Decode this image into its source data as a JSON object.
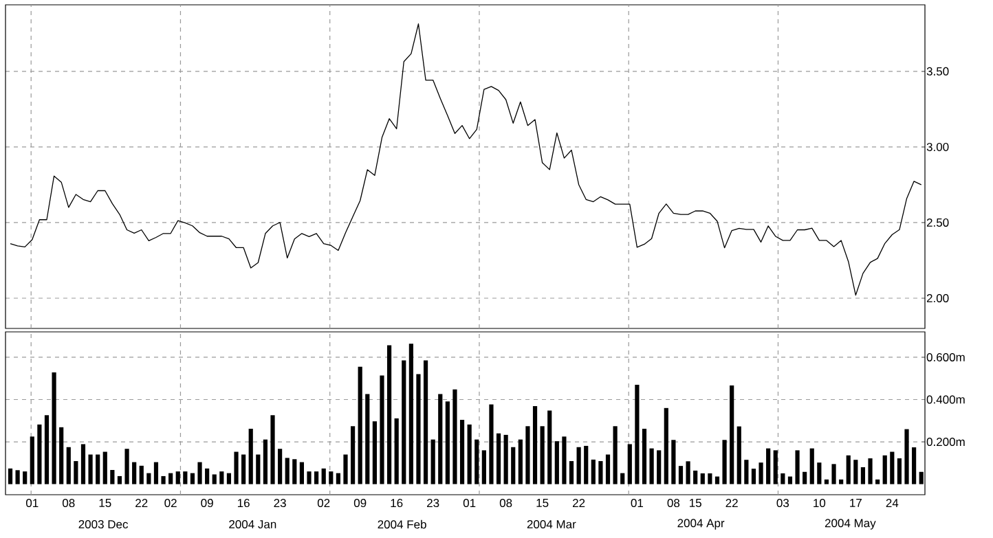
{
  "chart_data": [
    {
      "type": "line",
      "color": "#000000",
      "grid": true,
      "tick_labels": "y",
      "ylim": [
        1.8,
        3.94
      ],
      "yticks": [
        {
          "value": 2.0,
          "label": "2.00"
        },
        {
          "value": 2.5,
          "label": "2.50"
        },
        {
          "value": 3.0,
          "label": "3.00"
        },
        {
          "value": 3.5,
          "label": "3.50"
        }
      ],
      "categories": [
        null,
        null,
        null,
        "01",
        null,
        null,
        null,
        null,
        "08",
        null,
        null,
        null,
        null,
        "15",
        null,
        null,
        null,
        null,
        "22",
        null,
        null,
        null,
        "02",
        null,
        null,
        null,
        null,
        "09",
        null,
        null,
        null,
        null,
        "16",
        null,
        null,
        null,
        null,
        "23",
        null,
        null,
        null,
        null,
        null,
        "02",
        null,
        null,
        null,
        null,
        "09",
        null,
        null,
        null,
        null,
        "16",
        null,
        null,
        null,
        null,
        "23",
        null,
        null,
        null,
        null,
        "01",
        null,
        null,
        null,
        null,
        "08",
        null,
        null,
        null,
        null,
        "15",
        null,
        null,
        null,
        null,
        "22",
        null,
        null,
        null,
        null,
        null,
        null,
        null,
        "01",
        null,
        null,
        null,
        null,
        "08",
        null,
        null,
        "15",
        null,
        null,
        null,
        null,
        "22",
        null,
        null,
        null,
        null,
        null,
        null,
        "03",
        null,
        null,
        null,
        null,
        "10",
        null,
        null,
        null,
        null,
        "17",
        null,
        null,
        null,
        null,
        "24",
        null,
        null,
        null,
        null
      ],
      "values": [
        2.361,
        2.346,
        2.339,
        2.387,
        2.519,
        2.519,
        2.808,
        2.767,
        2.6,
        2.686,
        2.653,
        2.638,
        2.711,
        2.711,
        2.625,
        2.554,
        2.452,
        2.43,
        2.452,
        2.38,
        2.402,
        2.428,
        2.428,
        2.513,
        2.498,
        2.478,
        2.433,
        2.41,
        2.41,
        2.41,
        2.392,
        2.334,
        2.334,
        2.2,
        2.235,
        2.428,
        2.478,
        2.501,
        2.266,
        2.392,
        2.428,
        2.407,
        2.428,
        2.361,
        2.349,
        2.316,
        2.433,
        2.539,
        2.645,
        2.85,
        2.812,
        3.063,
        3.187,
        3.12,
        3.564,
        3.617,
        3.814,
        3.442,
        3.442,
        3.321,
        3.207,
        3.089,
        3.142,
        3.055,
        3.116,
        3.381,
        3.4,
        3.374,
        3.313,
        3.157,
        3.298,
        3.142,
        3.181,
        2.896,
        2.85,
        3.093,
        2.926,
        2.979,
        2.751,
        2.653,
        2.638,
        2.671,
        2.65,
        2.622,
        2.622,
        2.622,
        2.337,
        2.357,
        2.394,
        2.562,
        2.623,
        2.562,
        2.554,
        2.554,
        2.577,
        2.577,
        2.562,
        2.509,
        2.333,
        2.447,
        2.462,
        2.455,
        2.455,
        2.371,
        2.478,
        2.409,
        2.382,
        2.382,
        2.452,
        2.452,
        2.463,
        2.382,
        2.382,
        2.341,
        2.382,
        2.242,
        2.02,
        2.164,
        2.237,
        2.263,
        2.362,
        2.42,
        2.453,
        2.659,
        2.773,
        2.75
      ]
    },
    {
      "type": "bar",
      "color": "#000000",
      "grid": true,
      "ylim": [
        -0.05,
        0.72
      ],
      "yticks": [
        {
          "value": 0.2,
          "label": "0.200m"
        },
        {
          "value": 0.4,
          "label": "0.400m"
        },
        {
          "value": 0.6,
          "label": "0.600m"
        }
      ],
      "categories": [
        null,
        null,
        null,
        "01",
        null,
        null,
        null,
        null,
        "08",
        null,
        null,
        null,
        null,
        "15",
        null,
        null,
        null,
        null,
        "22",
        null,
        null,
        null,
        "02",
        null,
        null,
        null,
        null,
        "09",
        null,
        null,
        null,
        null,
        "16",
        null,
        null,
        null,
        null,
        "23",
        null,
        null,
        null,
        null,
        null,
        "02",
        null,
        null,
        null,
        null,
        "09",
        null,
        null,
        null,
        null,
        "16",
        null,
        null,
        null,
        null,
        "23",
        null,
        null,
        null,
        null,
        "01",
        null,
        null,
        null,
        null,
        "08",
        null,
        null,
        null,
        null,
        "15",
        null,
        null,
        null,
        null,
        "22",
        null,
        null,
        null,
        null,
        null,
        null,
        null,
        "01",
        null,
        null,
        null,
        null,
        "08",
        null,
        null,
        "15",
        null,
        null,
        null,
        null,
        "22",
        null,
        null,
        null,
        null,
        null,
        null,
        "03",
        null,
        null,
        null,
        null,
        "10",
        null,
        null,
        null,
        null,
        "17",
        null,
        null,
        null,
        null,
        "24",
        null,
        null,
        null,
        null
      ],
      "values": [
        0.074,
        0.066,
        0.06,
        0.225,
        0.282,
        0.326,
        0.528,
        0.269,
        0.175,
        0.109,
        0.189,
        0.14,
        0.14,
        0.153,
        0.067,
        0.038,
        0.167,
        0.104,
        0.087,
        0.052,
        0.104,
        0.038,
        0.052,
        0.06,
        0.06,
        0.052,
        0.104,
        0.074,
        0.046,
        0.06,
        0.052,
        0.153,
        0.14,
        0.262,
        0.14,
        0.211,
        0.326,
        0.167,
        0.124,
        0.118,
        0.104,
        0.06,
        0.06,
        0.074,
        0.06,
        0.052,
        0.14,
        0.274,
        0.555,
        0.426,
        0.297,
        0.514,
        0.657,
        0.311,
        0.585,
        0.664,
        0.52,
        0.585,
        0.211,
        0.426,
        0.391,
        0.448,
        0.304,
        0.282,
        0.211,
        0.16,
        0.377,
        0.24,
        0.233,
        0.175,
        0.211,
        0.274,
        0.369,
        0.274,
        0.348,
        0.203,
        0.225,
        0.109,
        0.175,
        0.181,
        0.116,
        0.109,
        0.14,
        0.274,
        0.052,
        0.189,
        0.47,
        0.262,
        0.169,
        0.16,
        0.36,
        0.209,
        0.086,
        0.108,
        0.064,
        0.051,
        0.051,
        0.036,
        0.209,
        0.467,
        0.273,
        0.115,
        0.073,
        0.102,
        0.169,
        0.16,
        0.051,
        0.036,
        0.16,
        0.058,
        0.169,
        0.102,
        0.022,
        0.095,
        0.022,
        0.136,
        0.115,
        0.08,
        0.122,
        0.022,
        0.136,
        0.153,
        0.122,
        0.26,
        0.174,
        0.058
      ],
      "annotations": [
        "2003 Dec",
        "2004 Jan",
        "2004 Feb",
        "2004 Mar",
        "2004 Apr",
        "2004 May"
      ]
    }
  ]
}
